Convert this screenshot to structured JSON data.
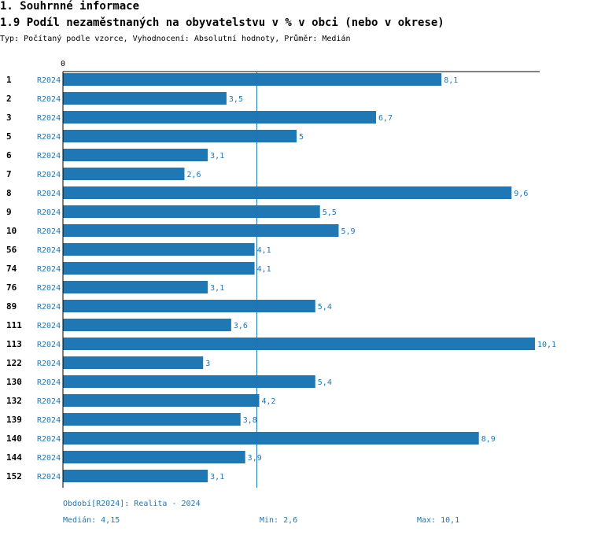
{
  "header": {
    "section_title": "1. Souhrnné informace",
    "chart_title": "1.9 Podíl nezaměstnaných na obyvatelstvu v % v obci (nebo v okrese)",
    "subtitle": "Typ: Počítaný podle vzorce, Vyhodnocení: Absolutní hodnoty, Průměr: Medián"
  },
  "footer": {
    "period": "Období[R2024]: Realita - 2024",
    "median": "Medián: 4,15",
    "min": "Min: 2,6",
    "max": "Max: 10,1"
  },
  "colors": {
    "bar": "#1f77b4",
    "label": "#1f77b4",
    "axis": "#000000"
  },
  "chart_data": {
    "type": "bar",
    "orientation": "horizontal",
    "title": "1.9 Podíl nezaměstnaných na obyvatelstvu v % v obci (nebo v okrese)",
    "axis_zero_label": "0",
    "xlim": [
      0,
      10.1
    ],
    "median": 4.15,
    "series_label": "R2024",
    "categories": [
      "1",
      "2",
      "3",
      "5",
      "6",
      "7",
      "8",
      "9",
      "10",
      "56",
      "74",
      "76",
      "89",
      "111",
      "113",
      "122",
      "130",
      "132",
      "139",
      "140",
      "144",
      "152"
    ],
    "values": [
      8.1,
      3.5,
      6.7,
      5,
      3.1,
      2.6,
      9.6,
      5.5,
      5.9,
      4.1,
      4.1,
      3.1,
      5.4,
      3.6,
      10.1,
      3,
      5.4,
      4.2,
      3.8,
      8.9,
      3.9,
      3.1
    ],
    "value_labels": [
      "8,1",
      "3,5",
      "6,7",
      "5",
      "3,1",
      "2,6",
      "9,6",
      "5,5",
      "5,9",
      "4,1",
      "4,1",
      "3,1",
      "5,4",
      "3,6",
      "10,1",
      "3",
      "5,4",
      "4,2",
      "3,8",
      "8,9",
      "3,9",
      "3,1"
    ]
  }
}
